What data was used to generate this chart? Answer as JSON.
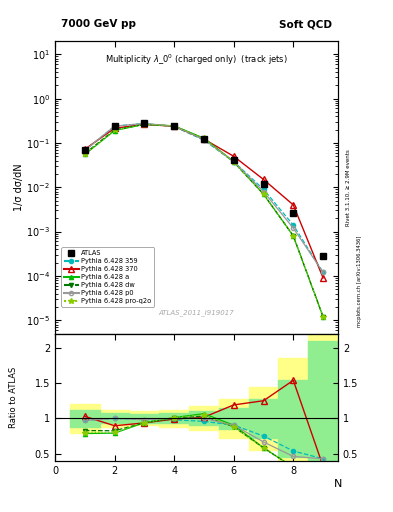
{
  "title_top": "7000 GeV pp",
  "title_right": "Soft QCD",
  "plot_title": "Multiplicity $\\lambda\\_0^0$ (charged only)  (track jets)",
  "ylabel_main": "1/σ dσ/dN",
  "ylabel_ratio": "Ratio to ATLAS",
  "xlabel": "N",
  "watermark": "ATLAS_2011_I919017",
  "right_label": "Rivet 3.1.10, ≥ 2.9M events",
  "right_label2": "mcplots.cern.ch [arXiv:1306.3436]",
  "N": [
    1,
    2,
    3,
    4,
    5,
    6,
    7,
    8,
    9
  ],
  "ATLAS": [
    0.07,
    0.24,
    0.28,
    0.24,
    0.12,
    0.042,
    0.012,
    0.0026,
    0.00028
  ],
  "p359": [
    0.068,
    0.24,
    0.275,
    0.235,
    0.115,
    0.038,
    0.009,
    0.0014,
    0.00012
  ],
  "p370": [
    0.072,
    0.215,
    0.262,
    0.238,
    0.122,
    0.05,
    0.015,
    0.004,
    9e-05
  ],
  "pa": [
    0.055,
    0.19,
    0.263,
    0.243,
    0.128,
    0.038,
    0.007,
    0.0008,
    1.2e-05
  ],
  "pdw": [
    0.058,
    0.198,
    0.263,
    0.24,
    0.124,
    0.037,
    0.007,
    0.0008,
    1.2e-05
  ],
  "pp0": [
    0.068,
    0.24,
    0.275,
    0.24,
    0.12,
    0.038,
    0.008,
    0.0012,
    0.00012
  ],
  "pproq2o": [
    0.056,
    0.193,
    0.263,
    0.243,
    0.126,
    0.037,
    0.007,
    0.0008,
    1.2e-05
  ],
  "color_atlas": "#000000",
  "color_p359": "#00bbbb",
  "color_p370": "#cc0000",
  "color_pa": "#00bb00",
  "color_pdw": "#007700",
  "color_pp0": "#999999",
  "color_pproq2o": "#88cc00",
  "bg_green": "#90ee90",
  "bg_yellow": "#ffff88",
  "ratio_ylim": [
    0.4,
    2.2
  ],
  "ratio_yticks": [
    0.5,
    1.0,
    1.5,
    2.0
  ],
  "ratio_yticklabels": [
    "0.5",
    "1",
    "1.5",
    "2"
  ],
  "main_ylim": [
    5e-06,
    20.0
  ],
  "xlim": [
    0.5,
    9.5
  ],
  "xticks": [
    0,
    2,
    4,
    6,
    8
  ],
  "green_heights": [
    0.12,
    0.07,
    0.06,
    0.07,
    0.1,
    0.15,
    0.28,
    0.55,
    1.1
  ],
  "yellow_heights": [
    0.2,
    0.12,
    0.1,
    0.12,
    0.17,
    0.28,
    0.45,
    0.85,
    1.5
  ]
}
